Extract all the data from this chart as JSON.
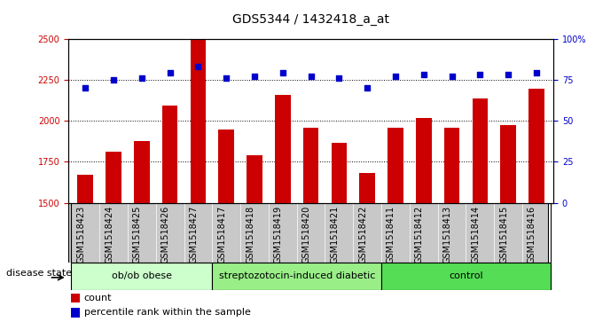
{
  "title": "GDS5344 / 1432418_a_at",
  "samples": [
    "GSM1518423",
    "GSM1518424",
    "GSM1518425",
    "GSM1518426",
    "GSM1518427",
    "GSM1518417",
    "GSM1518418",
    "GSM1518419",
    "GSM1518420",
    "GSM1518421",
    "GSM1518422",
    "GSM1518411",
    "GSM1518412",
    "GSM1518413",
    "GSM1518414",
    "GSM1518415",
    "GSM1518416"
  ],
  "counts": [
    1670,
    1810,
    1875,
    2090,
    2500,
    1945,
    1790,
    2155,
    1955,
    1865,
    1680,
    1960,
    2015,
    1960,
    2135,
    1975,
    2195
  ],
  "percentile_ranks": [
    70,
    75,
    76,
    79,
    83,
    76,
    77,
    79,
    77,
    76,
    70,
    77,
    78,
    77,
    78,
    78,
    79
  ],
  "bar_color": "#CC0000",
  "dot_color": "#0000CC",
  "ylim_left": [
    1500,
    2500
  ],
  "ylim_right": [
    0,
    100
  ],
  "yticks_left": [
    1500,
    1750,
    2000,
    2250,
    2500
  ],
  "yticks_right": [
    0,
    25,
    50,
    75,
    100
  ],
  "groups": [
    {
      "label": "ob/ob obese",
      "start": 0,
      "end": 5
    },
    {
      "label": "streptozotocin-induced diabetic",
      "start": 5,
      "end": 11
    },
    {
      "label": "control",
      "start": 11,
      "end": 17
    }
  ],
  "group_colors": [
    "#CCFFCC",
    "#99EE88",
    "#55DD55"
  ],
  "disease_label": "disease state",
  "legend_count_label": "count",
  "legend_percentile_label": "percentile rank within the sample",
  "title_fontsize": 10,
  "tick_fontsize": 7,
  "label_fontsize": 8,
  "axis_label_color_left": "#CC0000",
  "axis_label_color_right": "#0000CC",
  "xtick_bg": "#C8C8C8",
  "group_border_color": "#000000",
  "fig_bg": "#FFFFFF"
}
